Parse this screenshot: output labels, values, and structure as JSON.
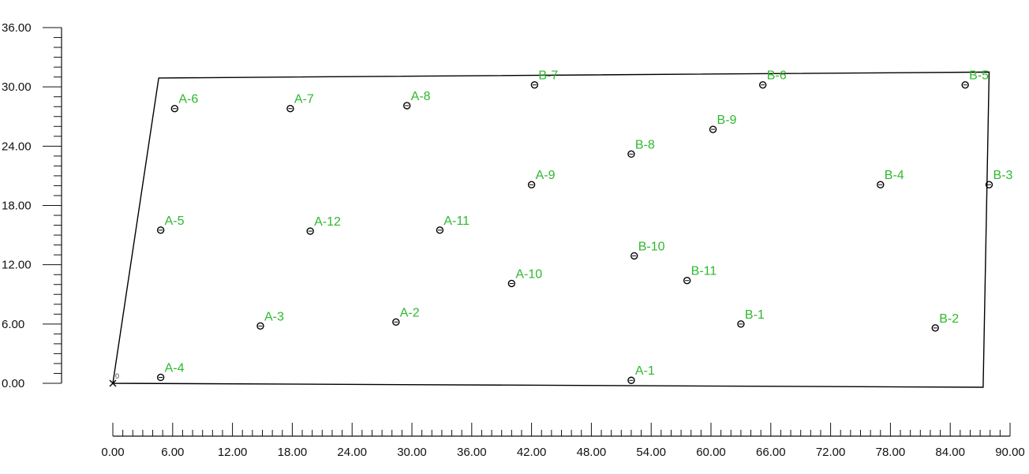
{
  "colors": {
    "axis": "#111111",
    "outline": "#000000",
    "marker": "#000000",
    "label": "#2db82d",
    "background": "#ffffff"
  },
  "x_axis": {
    "range": [
      0,
      90
    ],
    "tick_labels": [
      "0.00",
      "6.00",
      "12.00",
      "18.00",
      "24.00",
      "30.00",
      "36.00",
      "42.00",
      "48.00",
      "54.00",
      "60.00",
      "66.00",
      "72.00",
      "78.00",
      "84.00",
      "90.00"
    ]
  },
  "y_axis": {
    "range": [
      0,
      36
    ],
    "tick_labels": [
      "0.00",
      "6.00",
      "12.00",
      "18.00",
      "24.00",
      "30.00",
      "36.00"
    ]
  },
  "boundary": [
    [
      0,
      0
    ],
    [
      4.6,
      30.9
    ],
    [
      87.9,
      31.5
    ],
    [
      87.3,
      -0.4
    ]
  ],
  "origin_marker": {
    "x": 0,
    "y": 0,
    "label": "0"
  },
  "points": [
    {
      "label": "A-1",
      "x": 52.0,
      "y": 0.3
    },
    {
      "label": "A-2",
      "x": 28.4,
      "y": 6.2
    },
    {
      "label": "A-3",
      "x": 14.8,
      "y": 5.8
    },
    {
      "label": "A-4",
      "x": 4.8,
      "y": 0.6
    },
    {
      "label": "A-5",
      "x": 4.8,
      "y": 15.5
    },
    {
      "label": "A-6",
      "x": 6.2,
      "y": 27.8
    },
    {
      "label": "A-7",
      "x": 17.8,
      "y": 27.8
    },
    {
      "label": "A-8",
      "x": 29.5,
      "y": 28.1
    },
    {
      "label": "A-9",
      "x": 42.0,
      "y": 20.1
    },
    {
      "label": "A-10",
      "x": 40.0,
      "y": 10.1
    },
    {
      "label": "A-11",
      "x": 32.8,
      "y": 15.5
    },
    {
      "label": "A-12",
      "x": 19.8,
      "y": 15.4
    },
    {
      "label": "B-1",
      "x": 63.0,
      "y": 6.0
    },
    {
      "label": "B-2",
      "x": 82.5,
      "y": 5.6
    },
    {
      "label": "B-3",
      "x": 87.9,
      "y": 20.1
    },
    {
      "label": "B-4",
      "x": 77.0,
      "y": 20.1
    },
    {
      "label": "B-5",
      "x": 85.5,
      "y": 30.2
    },
    {
      "label": "B-6",
      "x": 65.2,
      "y": 30.2
    },
    {
      "label": "B-7",
      "x": 42.3,
      "y": 30.2
    },
    {
      "label": "B-8",
      "x": 52.0,
      "y": 23.2
    },
    {
      "label": "B-9",
      "x": 60.2,
      "y": 25.7
    },
    {
      "label": "B-10",
      "x": 52.3,
      "y": 12.9
    },
    {
      "label": "B-11",
      "x": 57.6,
      "y": 10.4
    }
  ]
}
